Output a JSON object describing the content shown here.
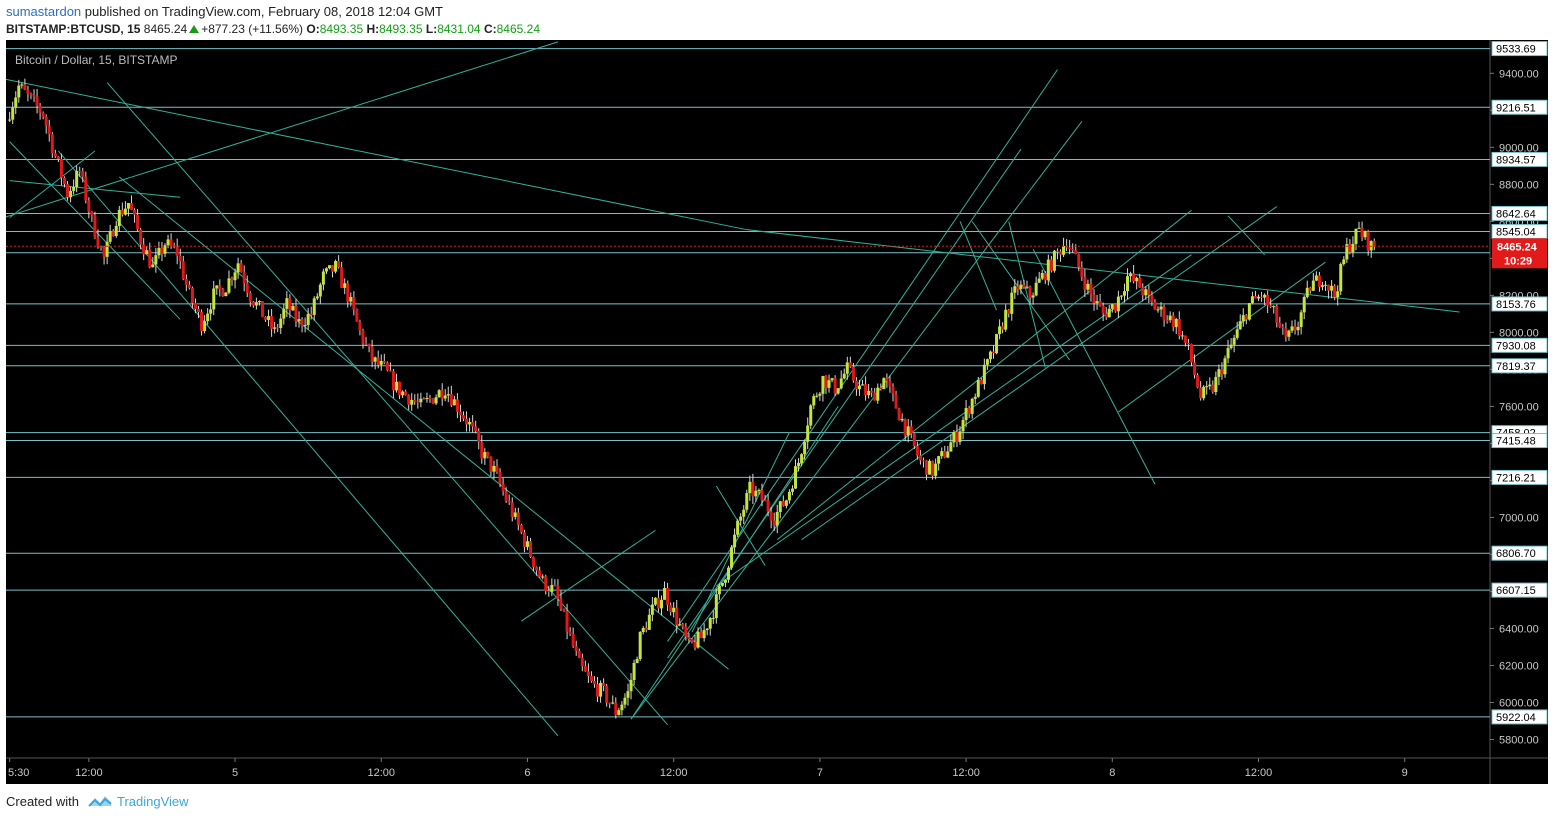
{
  "header": {
    "author": "sumastardon",
    "published_text": "published on TradingView.com, February 08, 2018 12:04 GMT",
    "symbol": "BITSTAMP:BTCUSD, 15",
    "last": "8465.24",
    "change": "+877.23 (+11.56%)",
    "o_label": "O:",
    "o_value": "8493.35",
    "h_label": "H:",
    "h_value": "8493.35",
    "l_label": "L:",
    "l_value": "8431.04",
    "c_label": "C:",
    "c_value": "8465.24"
  },
  "chart_title": "Bitcoin / Dollar, 15, BITSTAMP",
  "footer": {
    "created_with": "Created with",
    "brand": "TradingView"
  },
  "colors": {
    "background": "#000000",
    "bull": "#c4e63a",
    "bear": "#e01818",
    "trendline": "#2fb29a",
    "hline": "#79c0c9",
    "price_line": "#d52020",
    "axis_text": "#c8c8c8"
  },
  "chart_data": {
    "type": "candlestick",
    "title": "Bitcoin / Dollar, 15, BITSTAMP",
    "ylim": [
      5700,
      9580
    ],
    "y_ticks": [
      5800,
      6000,
      6200,
      6400,
      6600,
      6800,
      7000,
      7200,
      7400,
      7600,
      7800,
      8000,
      8200,
      8400,
      8600,
      8800,
      9000,
      9200,
      9400
    ],
    "y_tick_labels": [
      "5800.00",
      "6000.00",
      "6200.00",
      "6400.00",
      "6600.00",
      "6800.00",
      "7000.00",
      "7200.00",
      "7400.00",
      "7600.00",
      "7800.00",
      "8000.00",
      "8200.00",
      "8400.00",
      "8600.00",
      "8800.00",
      "9000.00",
      "9200.00",
      "9400.00"
    ],
    "x_ticks": [
      {
        "label": "5:30",
        "t": 0
      },
      {
        "label": "12:00",
        "t": 6.5
      },
      {
        "label": "5",
        "t": 18.5
      },
      {
        "label": "12:00",
        "t": 30.5
      },
      {
        "label": "6",
        "t": 42.5
      },
      {
        "label": "12:00",
        "t": 54.5
      },
      {
        "label": "7",
        "t": 66.5
      },
      {
        "label": "12:00",
        "t": 78.5
      },
      {
        "label": "8",
        "t": 90.5
      },
      {
        "label": "12:00",
        "t": 102.5
      },
      {
        "label": "9",
        "t": 114.5
      }
    ],
    "x_range_hours": [
      -0.3,
      121.5
    ],
    "horizontal_levels": [
      {
        "value": 9533.69,
        "label": "9533.69"
      },
      {
        "value": 9216.51,
        "label": "9216.51"
      },
      {
        "value": 8934.57,
        "label": "8934.57"
      },
      {
        "value": 8642.64,
        "label": "8642.64"
      },
      {
        "value": 8545.04,
        "label": "8545.04"
      },
      {
        "value": 8153.76,
        "label": "8153.76"
      },
      {
        "value": 7930.08,
        "label": "7930.08"
      },
      {
        "value": 7819.37,
        "label": "7819.37"
      },
      {
        "value": 7458.02,
        "label": "7458.02"
      },
      {
        "value": 7415.48,
        "label": "7415.48"
      },
      {
        "value": 7216.21,
        "label": "7216.21"
      },
      {
        "value": 6806.7,
        "label": "6806.70"
      },
      {
        "value": 6607.15,
        "label": "6607.15"
      },
      {
        "value": 5922.04,
        "label": "5922.04"
      }
    ],
    "extra_levels": [
      8430
    ],
    "current_price": {
      "value": 8465.24,
      "label": "8465.24",
      "countdown": "10:29"
    },
    "anchors": [
      [
        0,
        9150
      ],
      [
        1,
        9330
      ],
      [
        3,
        9180
      ],
      [
        4,
        8950
      ],
      [
        5,
        8750
      ],
      [
        6,
        8870
      ],
      [
        7,
        8600
      ],
      [
        8,
        8400
      ],
      [
        9,
        8620
      ],
      [
        10,
        8700
      ],
      [
        11,
        8500
      ],
      [
        12,
        8350
      ],
      [
        13,
        8480
      ],
      [
        14,
        8430
      ],
      [
        15,
        8200
      ],
      [
        16,
        8050
      ],
      [
        17,
        8200
      ],
      [
        18,
        8250
      ],
      [
        19,
        8380
      ],
      [
        20,
        8200
      ],
      [
        21,
        8100
      ],
      [
        22,
        8000
      ],
      [
        23,
        8150
      ],
      [
        24,
        8050
      ],
      [
        25,
        8100
      ],
      [
        26,
        8300
      ],
      [
        27,
        8350
      ],
      [
        28,
        8200
      ],
      [
        29,
        8000
      ],
      [
        30,
        7850
      ],
      [
        31,
        7800
      ],
      [
        32,
        7700
      ],
      [
        33,
        7650
      ],
      [
        34,
        7600
      ],
      [
        35,
        7650
      ],
      [
        36,
        7700
      ],
      [
        37,
        7600
      ],
      [
        38,
        7500
      ],
      [
        39,
        7350
      ],
      [
        40,
        7250
      ],
      [
        41,
        7100
      ],
      [
        42,
        6950
      ],
      [
        43,
        6800
      ],
      [
        44,
        6650
      ],
      [
        45,
        6600
      ],
      [
        46,
        6400
      ],
      [
        47,
        6200
      ],
      [
        48,
        6100
      ],
      [
        49,
        6050
      ],
      [
        50,
        5950
      ],
      [
        51,
        6050
      ],
      [
        52,
        6350
      ],
      [
        53,
        6500
      ],
      [
        54,
        6600
      ],
      [
        55,
        6450
      ],
      [
        56,
        6300
      ],
      [
        57,
        6350
      ],
      [
        58,
        6500
      ],
      [
        59,
        6700
      ],
      [
        60,
        6950
      ],
      [
        61,
        7150
      ],
      [
        62,
        7100
      ],
      [
        63,
        7000
      ],
      [
        64,
        7100
      ],
      [
        65,
        7300
      ],
      [
        66,
        7600
      ],
      [
        67,
        7750
      ],
      [
        68,
        7700
      ],
      [
        69,
        7800
      ],
      [
        70,
        7700
      ],
      [
        71,
        7650
      ],
      [
        72,
        7750
      ],
      [
        73,
        7600
      ],
      [
        74,
        7450
      ],
      [
        75,
        7300
      ],
      [
        76,
        7250
      ],
      [
        77,
        7350
      ],
      [
        78,
        7450
      ],
      [
        79,
        7600
      ],
      [
        80,
        7750
      ],
      [
        81,
        7900
      ],
      [
        82,
        8100
      ],
      [
        83,
        8250
      ],
      [
        84,
        8200
      ],
      [
        85,
        8300
      ],
      [
        86,
        8400
      ],
      [
        87,
        8500
      ],
      [
        88,
        8350
      ],
      [
        89,
        8200
      ],
      [
        90,
        8100
      ],
      [
        91,
        8150
      ],
      [
        92,
        8300
      ],
      [
        93,
        8250
      ],
      [
        94,
        8150
      ],
      [
        95,
        8100
      ],
      [
        96,
        8050
      ],
      [
        97,
        7900
      ],
      [
        98,
        7650
      ],
      [
        99,
        7700
      ],
      [
        100,
        7850
      ],
      [
        101,
        8000
      ],
      [
        102,
        8150
      ],
      [
        103,
        8200
      ],
      [
        104,
        8100
      ],
      [
        105,
        7950
      ],
      [
        106,
        8050
      ],
      [
        107,
        8250
      ],
      [
        108,
        8300
      ],
      [
        109,
        8200
      ],
      [
        110,
        8450
      ],
      [
        111,
        8550
      ],
      [
        112,
        8465
      ]
    ],
    "trendlines": [
      [
        [
          -0.5,
          9370
        ],
        [
          60.5,
          8555
        ]
      ],
      [
        [
          60.5,
          8555
        ],
        [
          119,
          8110
        ]
      ],
      [
        [
          -0.5,
          8620
        ],
        [
          45,
          9570
        ]
      ],
      [
        [
          0,
          9030
        ],
        [
          14,
          8070
        ]
      ],
      [
        [
          0,
          8620
        ],
        [
          7,
          8980
        ]
      ],
      [
        [
          0,
          8820
        ],
        [
          14,
          8730
        ]
      ],
      [
        [
          4,
          8980
        ],
        [
          45,
          5820
        ]
      ],
      [
        [
          8,
          9350
        ],
        [
          54,
          5880
        ]
      ],
      [
        [
          9,
          8840
        ],
        [
          59,
          6180
        ]
      ],
      [
        [
          42,
          6440
        ],
        [
          53,
          6930
        ]
      ],
      [
        [
          51,
          5910
        ],
        [
          68,
          7600
        ]
      ],
      [
        [
          51,
          5910
        ],
        [
          88,
          9140
        ]
      ],
      [
        [
          54,
          6330
        ],
        [
          86,
          9420
        ]
      ],
      [
        [
          54,
          6240
        ],
        [
          83,
          8990
        ]
      ],
      [
        [
          56,
          6380
        ],
        [
          64,
          7460
        ]
      ],
      [
        [
          58,
          7170
        ],
        [
          62,
          6740
        ]
      ],
      [
        [
          58,
          6630
        ],
        [
          97,
          8420
        ]
      ],
      [
        [
          63,
          6880
        ],
        [
          97,
          8660
        ]
      ],
      [
        [
          65,
          6880
        ],
        [
          104,
          8680
        ]
      ],
      [
        [
          78,
          8600
        ],
        [
          81,
          8120
        ]
      ],
      [
        [
          79,
          8600
        ],
        [
          87,
          7850
        ]
      ],
      [
        [
          82,
          8600
        ],
        [
          85,
          7810
        ]
      ],
      [
        [
          84,
          8450
        ],
        [
          94,
          7180
        ]
      ],
      [
        [
          91,
          7570
        ],
        [
          108,
          8380
        ]
      ],
      [
        [
          100,
          8630
        ],
        [
          103,
          8420
        ]
      ]
    ]
  }
}
